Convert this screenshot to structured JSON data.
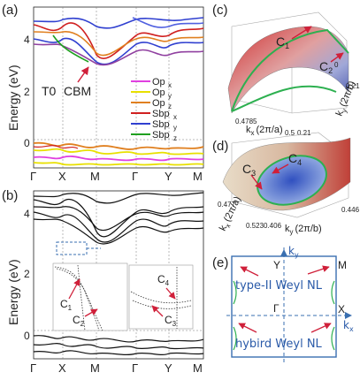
{
  "panel_labels": [
    "(a)",
    "(b)",
    "(c)",
    "(d)",
    "(e)"
  ],
  "panel_a": {
    "label": "T0",
    "cbm_label": "CBM",
    "ylabel": "Energy (eV)",
    "yticks": [
      "4",
      "2",
      "0"
    ],
    "xticks": [
      "Γ",
      "X",
      "M",
      "Γ",
      "Y",
      "M"
    ],
    "legend": [
      {
        "label": "Op",
        "sub": "x",
        "color": "#e040e0"
      },
      {
        "label": "Op",
        "sub": "y",
        "color": "#e8e000"
      },
      {
        "label": "Op",
        "sub": "z",
        "color": "#e08020"
      },
      {
        "label": "Sbp",
        "sub": "x",
        "color": "#d02020"
      },
      {
        "label": "Sbp",
        "sub": "y",
        "color": "#3040d0"
      },
      {
        "label": "Sbp",
        "sub": "z",
        "color": "#20a020"
      }
    ]
  },
  "panel_b": {
    "ylabel": "Energy (eV)",
    "yticks": [
      "4",
      "2",
      "0"
    ],
    "xticks": [
      "Γ",
      "X",
      "M",
      "Γ",
      "Y",
      "M"
    ],
    "inset_labels": [
      "C",
      "C",
      "C",
      "C"
    ],
    "inset_subs": [
      "1",
      "2",
      "3",
      "4"
    ]
  },
  "panel_c": {
    "label_c1": "C",
    "sub_c1": "1",
    "label_c2": "C",
    "sub_c2": "2",
    "kx_label": "k",
    "kx_sub": "x",
    "kx_unit": "(2π/a)",
    "ky_label": "k",
    "ky_sub": "y",
    "ky_unit": "(2π/b)",
    "ticks": [
      "0.4785",
      "0.5",
      "0.21",
      "0.21",
      "0"
    ]
  },
  "panel_d": {
    "label_c3": "C",
    "sub_c3": "3",
    "label_c4": "C",
    "sub_c4": "4",
    "kx_label": "k",
    "kx_sub": "x",
    "kx_unit": "(2π/a)",
    "ky_label": "k",
    "ky_sub": "y",
    "ky_unit": "(2π/b)",
    "ticks": [
      "0.477",
      "0.523",
      "0.406",
      "0.446"
    ]
  },
  "panel_e": {
    "ky_label": "k",
    "ky_sub": "y",
    "kx_label": "k",
    "kx_sub": "x",
    "points": [
      "Y",
      "M",
      "Γ",
      "X"
    ],
    "type2_text": "type-II Weyl NL",
    "hybrid_text": "hybird Weyl NL"
  },
  "colors": {
    "arrow": "#d0203a",
    "band": "#111111",
    "nodal_line": "#2db050",
    "bz": "#3a6fb0",
    "label_blue": "#2a5aa8"
  }
}
